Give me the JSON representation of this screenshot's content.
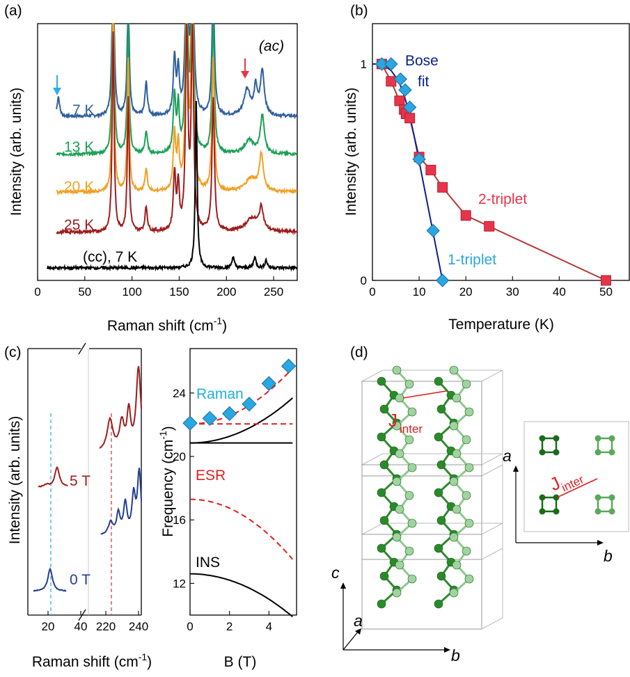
{
  "panel_labels": [
    "(a)",
    "(b)",
    "(c)",
    "(d)"
  ],
  "colors": {
    "k7": "#2f5f9e",
    "k13": "#1aa055",
    "k20": "#f2a023",
    "k25": "#9e1c1c",
    "cc": "#000000",
    "bose": "#0c1f8c",
    "two_triplet": "#b23a3a",
    "two_triplet_marker": "#e8344a",
    "one_triplet_marker": "#2aa7e0",
    "raman": "#1fb0e0",
    "esr": "#e01f1f",
    "ins": "#000000",
    "t0": "#243e8c",
    "t5": "#9e1c1c",
    "crystal": "#2e8b2e"
  },
  "chart_data": [
    {
      "panel": "(a)",
      "type": "line",
      "xlabel": "Raman shift (cm",
      "xlabel_sup": "-1",
      "xlabel_end": ")",
      "ylabel": "Intensity (arb. units)",
      "xlim": [
        0,
        275
      ],
      "xticks": [
        0,
        50,
        100,
        150,
        200,
        250
      ],
      "polarization_label": "(ac)",
      "cc_label": "(cc), 7 K",
      "series": [
        {
          "name": "7 K",
          "offset": 6.8,
          "peaks": [
            [
              22,
              0.9,
              1.5
            ],
            [
              80,
              9,
              1.2
            ],
            [
              96,
              6,
              1.2
            ],
            [
              115,
              1.5,
              1.5
            ],
            [
              145,
              2.6,
              1.5
            ],
            [
              149,
              2,
              1.3
            ],
            [
              158,
              9,
              1.5
            ],
            [
              164,
              9,
              1.5
            ],
            [
              186,
              6,
              1.5
            ],
            [
              222,
              1.2,
              4
            ],
            [
              231,
              1.2,
              2
            ],
            [
              238,
              2,
              2.5
            ]
          ]
        },
        {
          "name": "13 K",
          "offset": 5.1,
          "peaks": [
            [
              80,
              9,
              1.2
            ],
            [
              96,
              6,
              1.2
            ],
            [
              115,
              1,
              1.5
            ],
            [
              145,
              2.6,
              1.5
            ],
            [
              149,
              2,
              1.3
            ],
            [
              158,
              9,
              1.5
            ],
            [
              164,
              9,
              1.5
            ],
            [
              186,
              6,
              1.5
            ],
            [
              224,
              0.6,
              6
            ],
            [
              238,
              1.7,
              2.5
            ]
          ]
        },
        {
          "name": "20 K",
          "offset": 3.4,
          "peaks": [
            [
              80,
              9,
              1.2
            ],
            [
              96,
              6,
              1.2
            ],
            [
              115,
              1,
              1.5
            ],
            [
              145,
              2.6,
              1.5
            ],
            [
              149,
              2,
              1.3
            ],
            [
              158,
              9,
              1.5
            ],
            [
              164,
              9,
              1.5
            ],
            [
              186,
              6,
              1.5
            ],
            [
              226,
              0.6,
              7
            ],
            [
              237,
              1.6,
              2.5
            ]
          ]
        },
        {
          "name": "25 K",
          "offset": 1.6,
          "peaks": [
            [
              80,
              9,
              1.2
            ],
            [
              96,
              6,
              1.2
            ],
            [
              115,
              1.1,
              1.5
            ],
            [
              145,
              2.6,
              1.5
            ],
            [
              149,
              2,
              1.3
            ],
            [
              158,
              9,
              1.5
            ],
            [
              164,
              9,
              1.5
            ],
            [
              186,
              6,
              1.5
            ],
            [
              227,
              0.6,
              8
            ],
            [
              237,
              1,
              2.5
            ]
          ]
        },
        {
          "name": "(cc), 7 K",
          "offset": 0,
          "peaks": [
            [
              168,
              7.5,
              1.2
            ],
            [
              207,
              0.5,
              1.5
            ],
            [
              230,
              0.5,
              1.5
            ],
            [
              242,
              0.35,
              1.5
            ]
          ]
        }
      ]
    },
    {
      "panel": "(b)",
      "type": "line",
      "xlabel": "Temperature (K)",
      "ylabel": "Intensity (arb. units)",
      "xlim": [
        0,
        55
      ],
      "ylim": [
        0,
        1.2
      ],
      "xticks": [
        0,
        10,
        20,
        30,
        40,
        50
      ],
      "yticks": [
        0,
        1
      ],
      "series": [
        {
          "name": "2-triplet",
          "marker": "square",
          "x": [
            2,
            4,
            5.8,
            6.8,
            7.2,
            8,
            10,
            12.5,
            15,
            20,
            25,
            50
          ],
          "y": [
            1.0,
            0.92,
            0.83,
            0.79,
            0.77,
            0.75,
            0.57,
            0.51,
            0.43,
            0.3,
            0.25,
            0.0
          ]
        },
        {
          "name": "1-triplet",
          "marker": "diamond",
          "x": [
            2,
            4,
            6,
            7,
            8,
            10,
            13,
            15
          ],
          "y": [
            1.0,
            1.0,
            0.93,
            0.88,
            0.8,
            0.56,
            0.23,
            0.0
          ]
        },
        {
          "name": "Bose fit",
          "label_line1": "Bose",
          "label_line2": "fit",
          "x": [
            0,
            2,
            4,
            5,
            6,
            7,
            8,
            9,
            10,
            11,
            12,
            13,
            14,
            15
          ],
          "y": [
            1.0,
            1.0,
            0.97,
            0.94,
            0.9,
            0.84,
            0.76,
            0.66,
            0.55,
            0.44,
            0.33,
            0.22,
            0.11,
            0.0
          ]
        }
      ]
    },
    {
      "panel": "(c) left",
      "type": "line",
      "xlabel": "Raman shift (cm",
      "xlabel_sup": "-1",
      "xlabel_end": ")",
      "ylabel": "Intensity (arb. units)",
      "xticks": [
        "20",
        "40",
        "220",
        "240"
      ],
      "series": [
        {
          "name": "0 T"
        },
        {
          "name": "5 T"
        }
      ]
    },
    {
      "panel": "(c) right",
      "type": "line",
      "xlabel": "B (T)",
      "ylabel": "Frequency (cm",
      "ylabel_sup": "-1",
      "ylabel_end": ")",
      "xlim": [
        0,
        5.4
      ],
      "ylim": [
        10,
        26.8
      ],
      "xticks": [
        0,
        2,
        4
      ],
      "yticks": [
        12,
        16,
        20,
        24
      ],
      "series": [
        {
          "name": "Raman",
          "marker": "diamond",
          "x": [
            0,
            1,
            2,
            3,
            4,
            5
          ],
          "y": [
            22.1,
            22.4,
            22.7,
            23.3,
            24.6,
            25.7
          ]
        },
        {
          "name": "ESR",
          "x": [
            0,
            1,
            2,
            3,
            4,
            5
          ],
          "y": [
            17.3,
            17.1,
            16.6,
            15.8,
            14.9,
            13.8
          ]
        },
        {
          "name": "INS",
          "x": [
            0,
            1,
            2,
            3,
            4,
            5
          ],
          "y": [
            12.6,
            12.5,
            12.1,
            11.5,
            10.8,
            10.0
          ]
        }
      ]
    }
  ],
  "panel_d": {
    "j_label": "J",
    "j_sub": "inter",
    "axis_c": "c",
    "axis_a": "a",
    "axis_b": "b"
  }
}
